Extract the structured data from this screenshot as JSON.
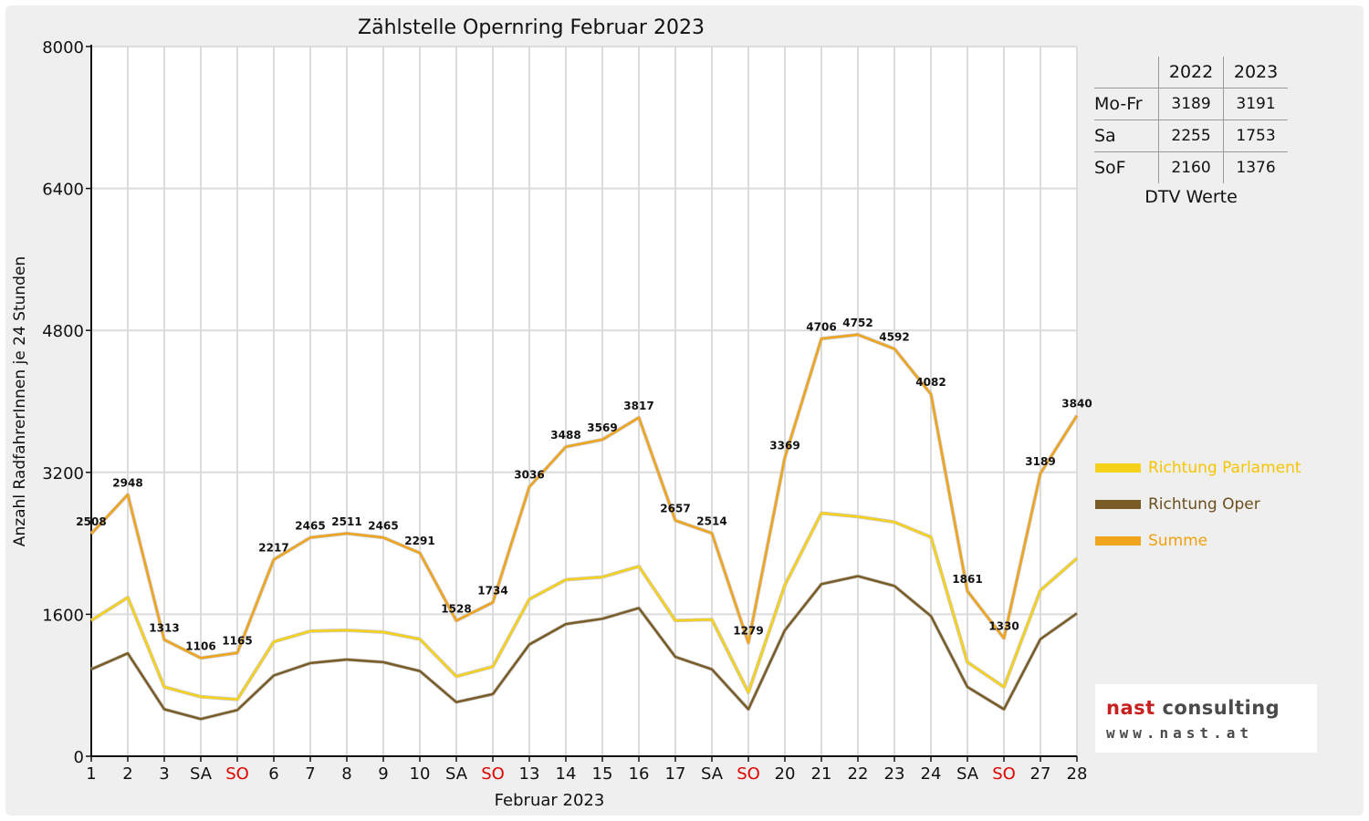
{
  "chart_data": {
    "type": "line",
    "title": "Zählstelle Opernring Februar 2023",
    "xlabel": "Februar 2023",
    "ylabel": "Anzahl RadfahrerInnen je 24 Stunden",
    "ylim": [
      0,
      8000
    ],
    "yticks": [
      0,
      1600,
      3200,
      4800,
      6400,
      8000
    ],
    "grid": true,
    "legend_position": "right",
    "categories": [
      "1",
      "2",
      "3",
      "SA",
      "SO",
      "6",
      "7",
      "8",
      "9",
      "10",
      "SA",
      "SO",
      "13",
      "14",
      "15",
      "16",
      "17",
      "SA",
      "SO",
      "20",
      "21",
      "22",
      "23",
      "24",
      "SA",
      "SO",
      "27",
      "28"
    ],
    "category_colors": [
      "#111111",
      "#111111",
      "#111111",
      "#111111",
      "#e00000",
      "#111111",
      "#111111",
      "#111111",
      "#111111",
      "#111111",
      "#111111",
      "#e00000",
      "#111111",
      "#111111",
      "#111111",
      "#111111",
      "#111111",
      "#111111",
      "#e00000",
      "#111111",
      "#111111",
      "#111111",
      "#111111",
      "#111111",
      "#111111",
      "#e00000",
      "#111111",
      "#111111"
    ],
    "series": [
      {
        "name": "Richtung Parlament",
        "color": "#f7d21b",
        "values": [
          1530,
          1790,
          780,
          670,
          640,
          1290,
          1410,
          1420,
          1400,
          1320,
          900,
          1010,
          1770,
          1990,
          2020,
          2140,
          1530,
          1540,
          720,
          1930,
          2740,
          2700,
          2640,
          2470,
          1060,
          780,
          1870,
          2230
        ]
      },
      {
        "name": "Richtung Oper",
        "color": "#7a5c26",
        "values": [
          980,
          1160,
          530,
          420,
          520,
          910,
          1050,
          1090,
          1060,
          960,
          610,
          700,
          1260,
          1490,
          1550,
          1670,
          1120,
          980,
          530,
          1420,
          1940,
          2030,
          1920,
          1580,
          780,
          530,
          1320,
          1610
        ]
      },
      {
        "name": "Summe",
        "color": "#f0a51c",
        "values": [
          2508,
          2948,
          1313,
          1106,
          1165,
          2217,
          2465,
          2511,
          2465,
          2291,
          1528,
          1734,
          3036,
          3488,
          3569,
          3817,
          2657,
          2514,
          1279,
          3369,
          4706,
          4752,
          4592,
          4082,
          1861,
          1330,
          3189,
          3840
        ]
      }
    ],
    "data_labels": [
      "2508",
      "2948",
      "1313",
      "1106",
      "1165",
      "2217",
      "2465",
      "2511",
      "2465",
      "2291",
      "1528",
      "1734",
      "3036",
      "3488",
      "3569",
      "3817",
      "2657",
      "2514",
      "1279",
      "3369",
      "4706",
      "4752",
      "4592",
      "4082",
      "1861",
      "1330",
      "3189",
      "3840"
    ]
  },
  "dtv_table": {
    "columns": [
      "2022",
      "2023"
    ],
    "rows": [
      {
        "label": "Mo-Fr",
        "v2022": "3189",
        "v2023": "3191"
      },
      {
        "label": "Sa",
        "v2022": "2255",
        "v2023": "1753"
      },
      {
        "label": "SoF",
        "v2022": "2160",
        "v2023": "1376"
      }
    ],
    "caption": "DTV Werte"
  },
  "legend": [
    {
      "label": "Richtung Parlament",
      "color": "#f7d21b"
    },
    {
      "label": "Richtung Oper",
      "color": "#7a5c26"
    },
    {
      "label": "Summe",
      "color": "#f0a51c"
    }
  ],
  "logo": {
    "line1_a": "nast",
    "line1_b": " consulting",
    "line2": "www.nast.at"
  }
}
